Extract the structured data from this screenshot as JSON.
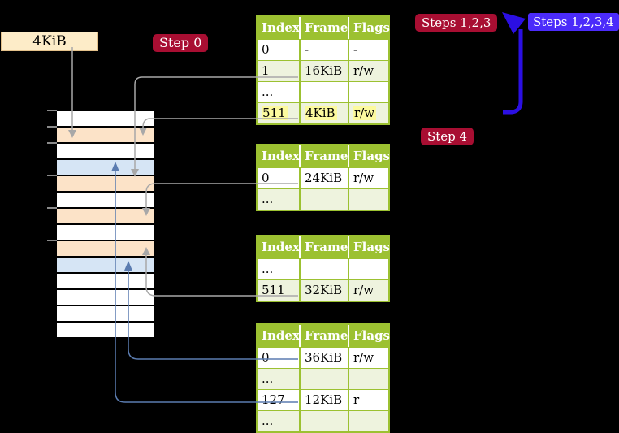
{
  "free_frame_label": "4KiB",
  "badges": {
    "step0": "Step 0",
    "steps123": "Steps 1,2,3",
    "steps1234": "Steps 1,2,3,4",
    "step4": "Step 4"
  },
  "colors": {
    "page_table_frame": "#fce3c8",
    "mapped_frame": "#d6e5f5",
    "free_frame": "#ffffff",
    "table_green": "#9cc131",
    "table_row_pale": "#eef3de",
    "highlight_yellow": "#fcfa9e",
    "wheat": "#fdecc8",
    "wheat_border": "#e3c18b",
    "badge_red": "#a80e32",
    "badge_blue": "#4b2bfa",
    "arrow_blue": "#2b0fe3",
    "connector_gray": "#a8a8a8",
    "connector_blue": "#5b7cb0",
    "tick_gray": "#8a8a8a"
  },
  "memory_rows": [
    "free_frame",
    "page_table_frame",
    "free_frame",
    "mapped_frame",
    "page_table_frame",
    "free_frame",
    "page_table_frame",
    "free_frame",
    "page_table_frame",
    "mapped_frame",
    "free_frame",
    "free_frame",
    "free_frame",
    "free_frame"
  ],
  "tables": [
    {
      "name": "page-table-level4",
      "headers": [
        "Index",
        "Frame",
        "Flags"
      ],
      "rows": [
        {
          "index": "0",
          "frame": "-",
          "flags": "-",
          "highlight": false
        },
        {
          "index": "1",
          "frame": "16KiB",
          "flags": "r/w",
          "highlight": false
        },
        {
          "index": "...",
          "frame": "",
          "flags": "",
          "highlight": false
        },
        {
          "index": "511",
          "frame": "4KiB",
          "flags": "r/w",
          "highlight": true
        }
      ]
    },
    {
      "name": "page-table-level3",
      "headers": [
        "Index",
        "Frame",
        "Flags"
      ],
      "rows": [
        {
          "index": "0",
          "frame": "24KiB",
          "flags": "r/w",
          "highlight": false
        },
        {
          "index": "...",
          "frame": "",
          "flags": "",
          "highlight": false
        }
      ]
    },
    {
      "name": "page-table-level2",
      "headers": [
        "Index",
        "Frame",
        "Flags"
      ],
      "rows": [
        {
          "index": "...",
          "frame": "",
          "flags": "",
          "highlight": false
        },
        {
          "index": "511",
          "frame": "32KiB",
          "flags": "r/w",
          "highlight": false
        }
      ]
    },
    {
      "name": "page-table-level1",
      "headers": [
        "Index",
        "Frame",
        "Flags"
      ],
      "rows": [
        {
          "index": "0",
          "frame": "36KiB",
          "flags": "r/w",
          "highlight": false
        },
        {
          "index": "...",
          "frame": "",
          "flags": "",
          "highlight": false
        },
        {
          "index": "127",
          "frame": "12KiB",
          "flags": "r",
          "highlight": false
        },
        {
          "index": "...",
          "frame": "",
          "flags": "",
          "highlight": false
        }
      ]
    }
  ]
}
